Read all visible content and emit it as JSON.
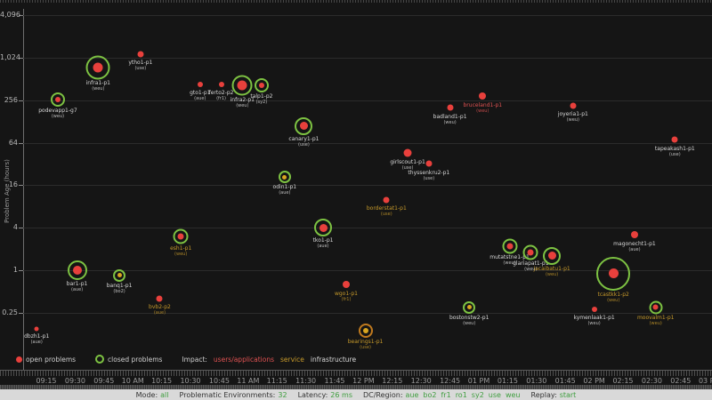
{
  "chart_data": {
    "type": "scatter",
    "title": "",
    "ylabel": "Problem Age (hours)",
    "y_scale": "log base 4",
    "y_ticks": [
      "4,096",
      "1,024",
      "256",
      "64",
      "16",
      "4",
      "1",
      "0.25"
    ],
    "y_tick_values": [
      4096,
      1024,
      256,
      64,
      16,
      4,
      1,
      0.25
    ],
    "ylim": [
      0.1,
      6000
    ],
    "x_tick_labels": [
      "09:15",
      "09:30",
      "09:45",
      "10 AM",
      "10:15",
      "10:30",
      "10:45",
      "11 AM",
      "11:15",
      "11:30",
      "11:45",
      "12 PM",
      "12:15",
      "12:30",
      "12:45",
      "01 PM",
      "01:15",
      "01:30",
      "01:45",
      "02 PM",
      "02:15",
      "02:30",
      "02:45",
      "03 PM"
    ],
    "x_range": [
      "09:09",
      "15:02"
    ],
    "grid": "horizontal",
    "legend_position": "bottom-left",
    "points": [
      {
        "name": "podevapp1-g7",
        "region": "weu",
        "time": "09:21",
        "age_hours": 260,
        "status": "closed",
        "impact": "infrastructure",
        "dot_color": "red",
        "dot_r": 3,
        "ring_r": 6
      },
      {
        "name": "infra1-p1",
        "region": "weu",
        "time": "09:42",
        "age_hours": 750,
        "status": "closed",
        "impact": "infrastructure",
        "dot_color": "red",
        "dot_r": 5.5,
        "ring_r": 11.5
      },
      {
        "name": "ytho1-p1",
        "region": "use",
        "time": "10:04",
        "age_hours": 1150,
        "status": "open",
        "impact": "infrastructure",
        "dot_color": "red",
        "dot_r": 3.5
      },
      {
        "name": "gto1-p1",
        "region": "aue",
        "time": "10:35",
        "age_hours": 430,
        "status": "open",
        "impact": "infrastructure",
        "dot_color": "red",
        "dot_r": 3
      },
      {
        "name": "ferto2-p2",
        "region": "fr1",
        "time": "10:46",
        "age_hours": 430,
        "status": "open",
        "impact": "infrastructure",
        "dot_color": "red",
        "dot_r": 3
      },
      {
        "name": "infra2-p1",
        "region": "weu",
        "time": "10:57",
        "age_hours": 415,
        "status": "closed",
        "impact": "infrastructure",
        "dot_color": "red",
        "dot_r": 5.5,
        "ring_r": 9.5
      },
      {
        "name": "talp1-p2",
        "region": "sy2",
        "time": "11:07",
        "age_hours": 415,
        "status": "closed",
        "impact": "infrastructure",
        "dot_color": "red",
        "dot_r": 3,
        "ring_r": 6
      },
      {
        "name": "canary1-p1",
        "region": "use",
        "time": "11:29",
        "age_hours": 110,
        "status": "closed",
        "impact": "infrastructure",
        "dot_color": "red",
        "dot_r": 4.5,
        "ring_r": 8
      },
      {
        "name": "badland1-p1",
        "region": "weu",
        "time": "12:45",
        "age_hours": 200,
        "status": "open",
        "impact": "infrastructure",
        "dot_color": "red",
        "dot_r": 3.5
      },
      {
        "name": "bruceland1-p1",
        "region": "weu",
        "time": "13:02",
        "age_hours": 290,
        "status": "open",
        "impact": "users/applications",
        "dot_color": "red",
        "dot_r": 4
      },
      {
        "name": "joyeria1-p1",
        "region": "weu",
        "time": "13:49",
        "age_hours": 215,
        "status": "open",
        "impact": "infrastructure",
        "dot_color": "red",
        "dot_r": 3.5
      },
      {
        "name": "tapeakash1-p1",
        "region": "use",
        "time": "14:42",
        "age_hours": 70,
        "status": "open",
        "impact": "infrastructure",
        "dot_color": "red",
        "dot_r": 3.5
      },
      {
        "name": "girlscout1-p1",
        "region": "use",
        "time": "12:23",
        "age_hours": 46,
        "status": "open",
        "impact": "infrastructure",
        "dot_color": "red",
        "dot_r": 4.5
      },
      {
        "name": "thyssenkru2-p1",
        "region": "use",
        "time": "12:34",
        "age_hours": 32,
        "status": "open",
        "impact": "infrastructure",
        "dot_color": "red",
        "dot_r": 3.5
      },
      {
        "name": "odin1-p1",
        "region": "aue",
        "time": "11:19",
        "age_hours": 21,
        "status": "closed",
        "impact": "infrastructure",
        "dot_color": "yellow",
        "dot_r": 2.5,
        "ring_r": 5
      },
      {
        "name": "borderstat1-p1",
        "region": "use",
        "time": "12:12",
        "age_hours": 10,
        "status": "open",
        "impact": "service",
        "dot_color": "red",
        "dot_r": 3.5
      },
      {
        "name": "tko1-p1",
        "region": "aue",
        "time": "11:39",
        "age_hours": 4,
        "status": "closed",
        "impact": "infrastructure",
        "dot_color": "red",
        "dot_r": 4.5,
        "ring_r": 8
      },
      {
        "name": "esh1-p1",
        "region": "weu",
        "time": "10:25",
        "age_hours": 3,
        "status": "closed",
        "impact": "service",
        "dot_color": "red",
        "dot_r": 3.5,
        "ring_r": 6.5
      },
      {
        "name": "bar1-p1",
        "region": "aue",
        "time": "09:31",
        "age_hours": 1,
        "status": "closed",
        "impact": "infrastructure",
        "dot_color": "red",
        "dot_r": 5,
        "ring_r": 9
      },
      {
        "name": "banq1-p1",
        "region": "bo2",
        "time": "09:53",
        "age_hours": 0.85,
        "status": "closed",
        "impact": "infrastructure",
        "dot_color": "yellow",
        "dot_r": 2.5,
        "ring_r": 5
      },
      {
        "name": "bvb2-p2",
        "region": "aue",
        "time": "10:14",
        "age_hours": 0.4,
        "status": "open",
        "impact": "service",
        "dot_color": "red",
        "dot_r": 3.5
      },
      {
        "name": "dbzh1-p1",
        "region": "aue",
        "time": "09:10",
        "age_hours": 0.15,
        "status": "open",
        "impact": "infrastructure",
        "dot_color": "red",
        "dot_r": 2.5
      },
      {
        "name": "wgo1-p1",
        "region": "fr1",
        "time": "11:51",
        "age_hours": 0.64,
        "status": "open",
        "impact": "service",
        "dot_color": "red",
        "dot_r": 4
      },
      {
        "name": "bostonstw2-p1",
        "region": "weu",
        "time": "12:55",
        "age_hours": 0.3,
        "status": "closed",
        "impact": "infrastructure",
        "dot_color": "yellow",
        "dot_r": 2.5,
        "ring_r": 5
      },
      {
        "name": "bearings1-p1",
        "region": "use",
        "time": "12:01",
        "age_hours": 0.14,
        "status": "closed",
        "impact": "service",
        "dot_color": "yellow",
        "dot_r": 3,
        "ring_r": 6,
        "ring_color": "#c07a1e"
      },
      {
        "name": "mutatstne1-p1",
        "region": "weu",
        "time": "13:16",
        "age_hours": 2.2,
        "status": "closed",
        "impact": "infrastructure",
        "dot_color": "red",
        "dot_r": 3.5,
        "ring_r": 6.5
      },
      {
        "name": "glariapat1-p1",
        "region": "weu",
        "time": "13:27",
        "age_hours": 1.8,
        "status": "closed",
        "impact": "infrastructure",
        "dot_color": "red",
        "dot_r": 3.5,
        "ring_r": 6.5
      },
      {
        "name": "jacaibatu1-p1",
        "region": "weu",
        "time": "13:38",
        "age_hours": 1.6,
        "status": "closed",
        "impact": "service",
        "dot_color": "red",
        "dot_r": 4.5,
        "ring_r": 8
      },
      {
        "name": "magonecht1-p1",
        "region": "aue",
        "time": "14:21",
        "age_hours": 3.2,
        "status": "open",
        "impact": "infrastructure",
        "dot_color": "red",
        "dot_r": 4
      },
      {
        "name": "tcastkk1-p2",
        "region": "weu",
        "time": "14:10",
        "age_hours": 0.9,
        "status": "closed",
        "impact": "service",
        "dot_color": "red",
        "dot_r": 5.5,
        "ring_r": 17
      },
      {
        "name": "moovalm1-p1",
        "region": "weu",
        "time": "14:32",
        "age_hours": 0.3,
        "status": "closed",
        "impact": "service",
        "dot_color": "red",
        "dot_r": 3,
        "ring_r": 5.5
      },
      {
        "name": "kymenlaak1-p1",
        "region": "weu",
        "time": "14:00",
        "age_hours": 0.28,
        "status": "open",
        "impact": "infrastructure",
        "dot_color": "red",
        "dot_r": 3
      }
    ]
  },
  "legend": {
    "open_label": "open problems",
    "closed_label": "closed problems",
    "impact_label": "Impact:",
    "impacts": [
      {
        "label": "users/applications",
        "color": "#e05252"
      },
      {
        "label": "service",
        "color": "#c79a2a"
      },
      {
        "label": "infrastructure",
        "color": "#d8d8d8"
      }
    ]
  },
  "status_bar": {
    "mode_label": "Mode:",
    "mode_value": "all",
    "env_label": "Problematic Environments:",
    "env_value": "32",
    "latency_label": "Latency:",
    "latency_value": "26 ms",
    "dc_label": "DC/Region:",
    "regions": [
      "aue",
      "bo2",
      "fr1",
      "ro1",
      "sy2",
      "use",
      "weu"
    ],
    "replay_label": "Replay:",
    "replay_value": "start"
  },
  "colors": {
    "background": "#151515",
    "open_problem": "#e8403c",
    "closed_ring": "#7dc242",
    "yellow_dot": "#d9a520",
    "impact_users": "#e05252",
    "impact_service": "#c79a2a",
    "impact_infrastructure": "#d8d8d8",
    "status_value_green": "#3f9e3f"
  }
}
